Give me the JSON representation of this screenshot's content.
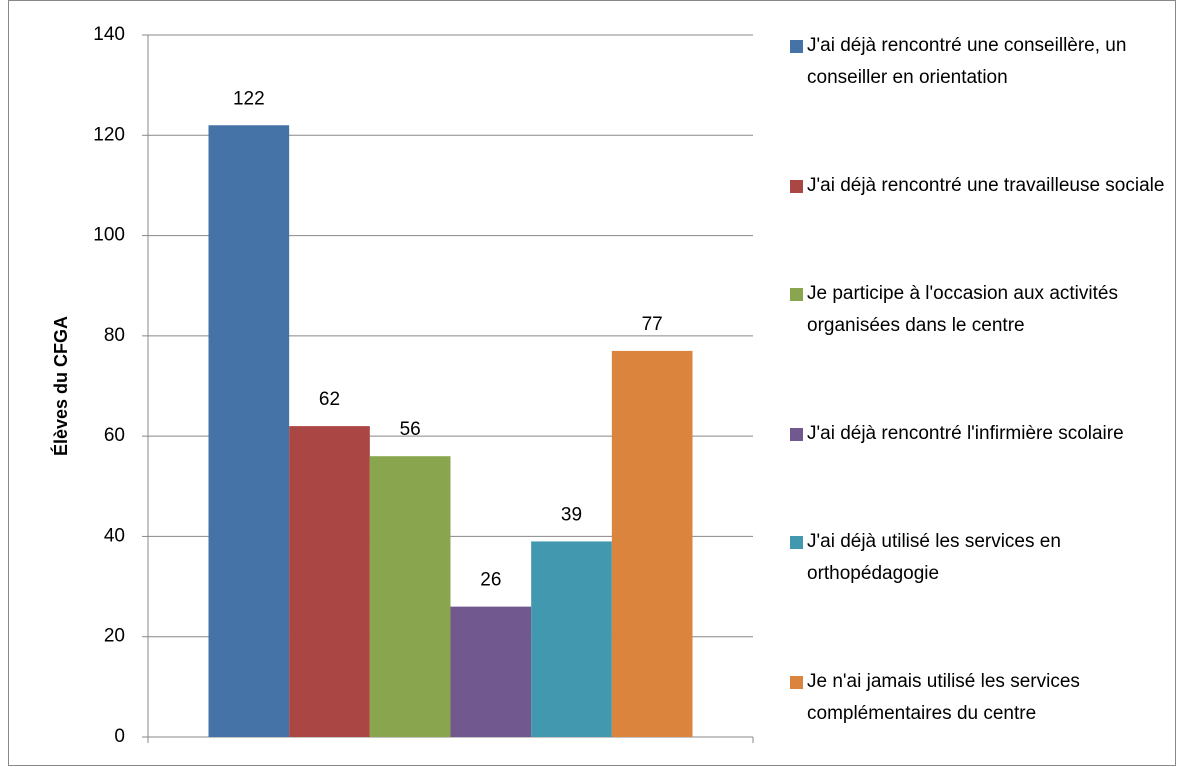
{
  "chart_data": {
    "type": "bar",
    "ylabel": "Élèves du CFGA",
    "categories": [
      null
    ],
    "series": [
      {
        "name": "J'ai déjà rencontré une conseillère, un conseiller en orientation",
        "color": "#4572a7",
        "values": [
          122
        ]
      },
      {
        "name": "J'ai déjà rencontré une travailleuse sociale",
        "color": "#aa4643",
        "values": [
          62
        ]
      },
      {
        "name": "Je participe à l'occasion aux activités organisées dans le centre",
        "color": "#89a54e",
        "values": [
          56
        ]
      },
      {
        "name": "J'ai déjà rencontré l'infirmière scolaire",
        "color": "#71588f",
        "values": [
          26
        ]
      },
      {
        "name": "J'ai déjà utilisé les services en orthopédagogie",
        "color": "#4198af",
        "values": [
          39
        ]
      },
      {
        "name": "Je n'ai jamais utilisé les services complémentaires du centre",
        "color": "#db843d",
        "values": [
          77
        ]
      }
    ],
    "ylim": [
      0,
      140
    ],
    "yticks": [
      0,
      20,
      40,
      60,
      80,
      100,
      120,
      140
    ],
    "grid": true,
    "legend": "right"
  }
}
